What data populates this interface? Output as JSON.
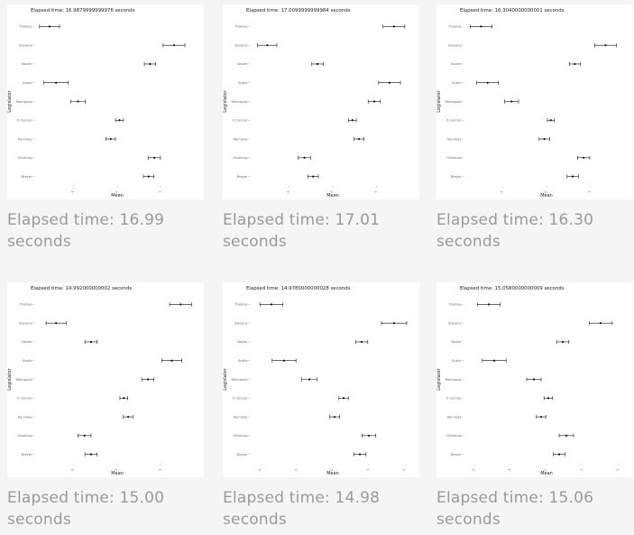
{
  "cells": [
    {
      "caption": "Elapsed time: 16.99 seconds",
      "chart_data": {
        "type": "scatter",
        "title": "Elapsed time: 16.9879999999976 seconds",
        "xlabel": "Mean",
        "ylabel": "Legislator",
        "xlim": [
          -1.9,
          1.9
        ],
        "x_ticks": [
          -1,
          0,
          1
        ],
        "x_tick_labels": [
          "-1",
          "0",
          "1"
        ],
        "categories": [
          "Thomas",
          "Stevens",
          "Souter",
          "Scalia",
          "Rehnquist",
          "O Connor",
          "Kennedy",
          "Ginsburg",
          "Breyer"
        ],
        "values": [
          -1.55,
          1.3,
          0.75,
          -1.4,
          -0.9,
          0.05,
          -0.15,
          0.85,
          0.72
        ],
        "lower": [
          -1.78,
          1.05,
          0.62,
          -1.68,
          -1.07,
          -0.04,
          -0.26,
          0.71,
          0.6
        ],
        "upper": [
          -1.32,
          1.55,
          0.88,
          -1.12,
          -0.73,
          0.14,
          -0.04,
          0.99,
          0.84
        ]
      }
    },
    {
      "caption": "Elapsed time: 17.01 seconds",
      "chart_data": {
        "type": "scatter",
        "title": "Elapsed time: 17.0099999999984 seconds",
        "xlabel": "Mean",
        "ylabel": "Legislator",
        "xlim": [
          -1.9,
          1.9
        ],
        "x_ticks": [
          -1,
          0,
          1
        ],
        "x_tick_labels": [
          "-1",
          "0",
          "1"
        ],
        "categories": [
          "Thomas",
          "Stevens",
          "Souter",
          "Scalia",
          "Rehnquist",
          "O Connor",
          "Kennedy",
          "Ginsburg",
          "Breyer"
        ],
        "values": [
          1.4,
          -1.5,
          -0.35,
          1.3,
          0.95,
          0.45,
          0.6,
          -0.65,
          -0.45
        ],
        "lower": [
          1.15,
          -1.72,
          -0.48,
          1.05,
          0.81,
          0.36,
          0.49,
          -0.79,
          -0.57
        ],
        "upper": [
          1.65,
          -1.28,
          -0.22,
          1.55,
          1.09,
          0.54,
          0.71,
          -0.51,
          -0.33
        ]
      }
    },
    {
      "caption": "Elapsed time: 16.30 seconds",
      "chart_data": {
        "type": "scatter",
        "title": "Elapsed time: 16.3040000000001 seconds",
        "xlabel": "Mean",
        "ylabel": "Legislator",
        "xlim": [
          -1.9,
          1.9
        ],
        "x_ticks": [
          -1,
          0,
          1
        ],
        "x_tick_labels": [
          "-1",
          "0",
          "1"
        ],
        "categories": [
          "Thomas",
          "Stevens",
          "Souter",
          "Scalia",
          "Rehnquist",
          "O Connor",
          "Kennedy",
          "Ginsburg",
          "Breyer"
        ],
        "values": [
          -1.5,
          1.35,
          0.65,
          -1.35,
          -0.8,
          0.1,
          -0.05,
          0.85,
          0.6
        ],
        "lower": [
          -1.75,
          1.1,
          0.52,
          -1.6,
          -0.96,
          0.02,
          -0.17,
          0.71,
          0.47
        ],
        "upper": [
          -1.25,
          1.6,
          0.78,
          -1.1,
          -0.64,
          0.18,
          0.07,
          0.99,
          0.73
        ]
      }
    },
    {
      "caption": "Elapsed time: 15.00 seconds",
      "chart_data": {
        "type": "scatter",
        "title": "Elapsed time: 14.992000000002 seconds",
        "xlabel": "Mean",
        "ylabel": "Legislator",
        "xlim": [
          -1.9,
          1.9
        ],
        "x_ticks": [
          -1,
          0,
          1
        ],
        "x_tick_labels": [
          "-1",
          "0",
          "1"
        ],
        "categories": [
          "Thomas",
          "Stevens",
          "Souter",
          "Scalia",
          "Rehnquist",
          "O Connor",
          "Kennedy",
          "Ginsburg",
          "Breyer"
        ],
        "values": [
          1.45,
          -1.4,
          -0.6,
          1.25,
          0.7,
          0.15,
          0.25,
          -0.75,
          -0.6
        ],
        "lower": [
          1.2,
          -1.63,
          -0.74,
          1.02,
          0.56,
          0.06,
          0.14,
          -0.9,
          -0.74
        ],
        "upper": [
          1.7,
          -1.17,
          -0.46,
          1.48,
          0.84,
          0.24,
          0.36,
          -0.6,
          -0.46
        ]
      }
    },
    {
      "caption": "Elapsed time: 14.98 seconds",
      "chart_data": {
        "type": "scatter",
        "title": "Elapsed time: 14.9780000000028 seconds",
        "xlabel": "Mean",
        "ylabel": "Legislator",
        "xlim": [
          -2.3,
          2.3
        ],
        "x_ticks": [
          -2,
          -1,
          0,
          1,
          2
        ],
        "x_tick_labels": [
          "-2",
          "-1",
          "0",
          "1",
          "2"
        ],
        "categories": [
          "Thomas",
          "Stevens",
          "Souter",
          "Scalia",
          "Rehnquist",
          "O Connor",
          "Kennedy",
          "Ginsburg",
          "Breyer"
        ],
        "values": [
          -1.7,
          1.7,
          0.8,
          -1.35,
          -0.65,
          0.3,
          0.05,
          1.0,
          0.75
        ],
        "lower": [
          -2.02,
          1.35,
          0.63,
          -1.68,
          -0.86,
          0.17,
          -0.09,
          0.81,
          0.58
        ],
        "upper": [
          -1.38,
          2.05,
          0.97,
          -1.02,
          -0.44,
          0.43,
          0.19,
          1.19,
          0.92
        ]
      }
    },
    {
      "caption": "Elapsed time: 15.06 seconds",
      "chart_data": {
        "type": "scatter",
        "title": "Elapsed time: 15.0580000000009 seconds",
        "xlabel": "Mean",
        "ylabel": "Legislator",
        "xlim": [
          -2.3,
          2.3
        ],
        "x_ticks": [
          -2,
          -1,
          0,
          1,
          2
        ],
        "x_tick_labels": [
          "-2",
          "-1",
          "0",
          "1",
          "2"
        ],
        "categories": [
          "Thomas",
          "Stevens",
          "Souter",
          "Scalia",
          "Rehnquist",
          "O Connor",
          "Kennedy",
          "Ginsburg",
          "Breyer"
        ],
        "values": [
          -1.6,
          1.5,
          0.45,
          -1.45,
          -0.35,
          0.05,
          -0.15,
          0.55,
          0.35
        ],
        "lower": [
          -1.92,
          1.18,
          0.28,
          -1.78,
          -0.55,
          -0.07,
          -0.28,
          0.35,
          0.19
        ],
        "upper": [
          -1.28,
          1.82,
          0.62,
          -1.12,
          -0.15,
          0.17,
          -0.02,
          0.75,
          0.51
        ]
      }
    }
  ]
}
